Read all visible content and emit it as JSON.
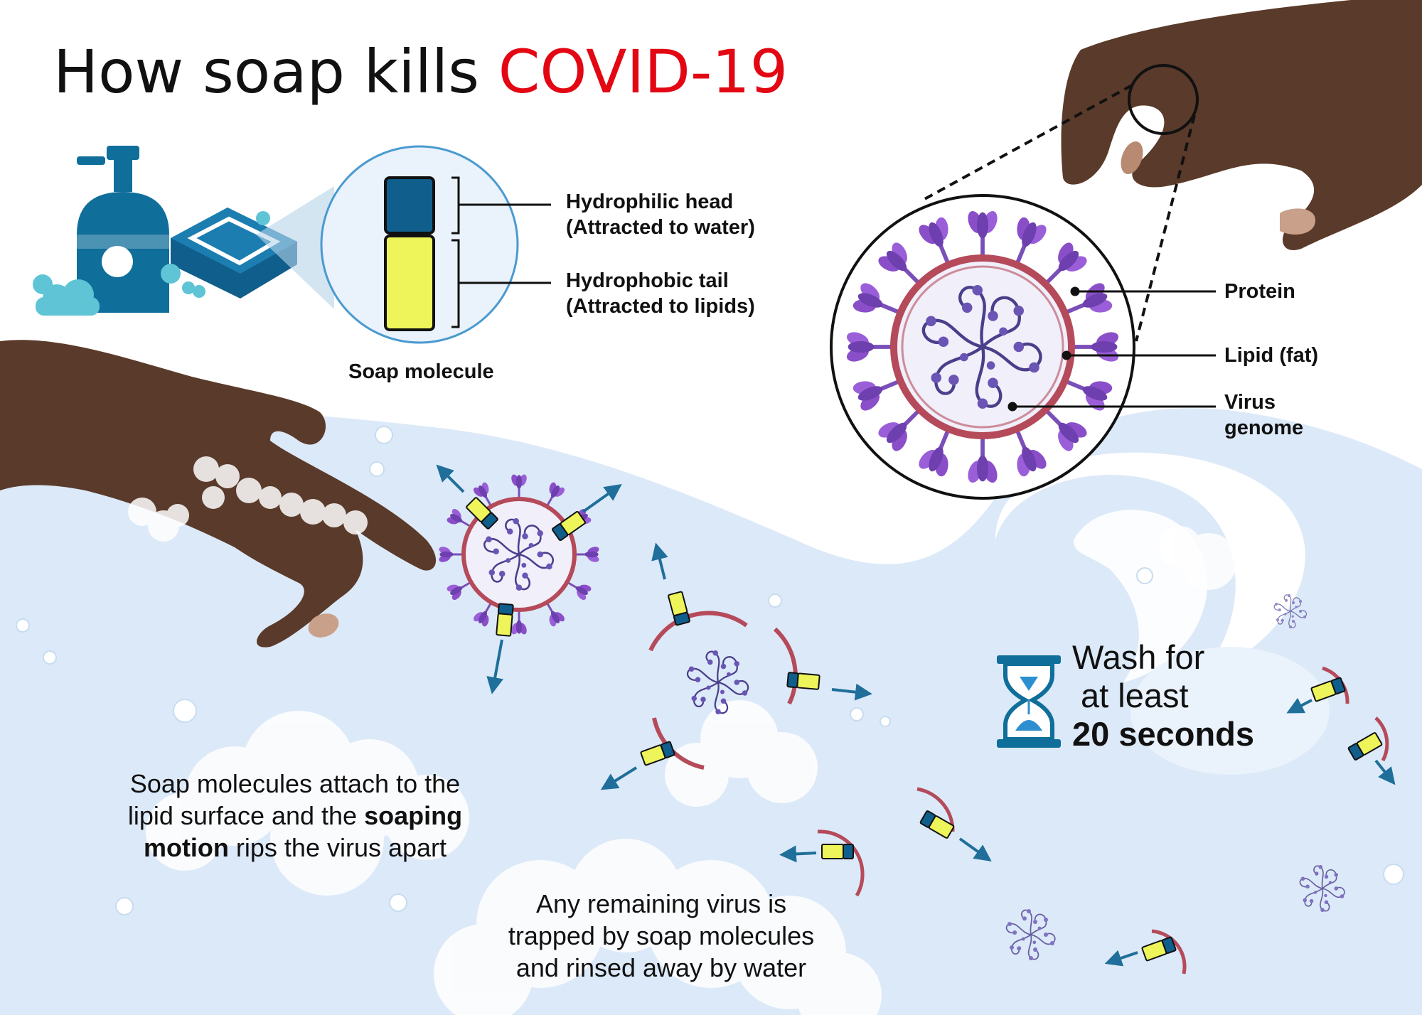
{
  "title": {
    "prefix": "How soap kills",
    "highlight": "COVID-19",
    "highlight_color": "#e30613"
  },
  "soap_diagram": {
    "head_label_1": "Hydrophilic head",
    "head_label_2": "(Attracted to water)",
    "tail_label_1": "Hydrophobic tail",
    "tail_label_2": "(Attracted to lipids)",
    "caption": "Soap molecule",
    "head_color": "#0f5e8c",
    "tail_color": "#eef55a"
  },
  "virus_diagram": {
    "protein_label": "Protein",
    "lipid_label": "Lipid (fat)",
    "genome_label_1": "Virus",
    "genome_label_2": "genome",
    "spike_color": "#8a4fc8",
    "membrane_color": "#b54a5a"
  },
  "captions": {
    "soaping_1": "Soap molecules attach to the",
    "soaping_2a": "lipid surface and the ",
    "soaping_2b": "soaping",
    "soaping_3a": "motion",
    "soaping_3b": " rips the virus apart",
    "rinse_1": "Any remaining virus is",
    "rinse_2": "trapped by soap molecules",
    "rinse_3": "and rinsed away by water"
  },
  "wash": {
    "line_1": "Wash for",
    "line_2": "at least",
    "line_3": "20 seconds"
  },
  "icons": [
    "soap-pump-icon",
    "soap-bar-icon",
    "hourglass-icon",
    "hand-icon",
    "virus-icon"
  ],
  "colors": {
    "water": "#dce9f8",
    "soap_blue": "#0f6e9a",
    "skin": "#5a3a2a",
    "bubble": "#cfe3f5"
  }
}
